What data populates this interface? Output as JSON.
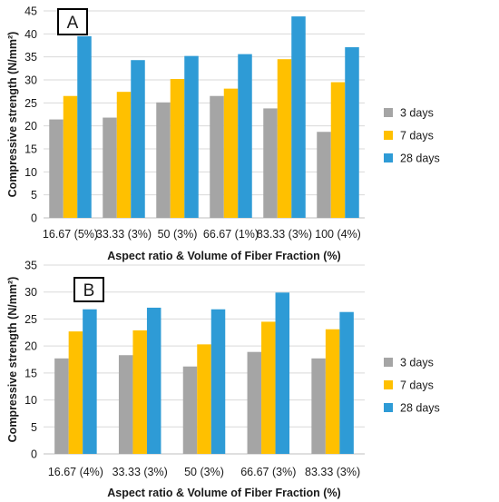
{
  "chart_data": [
    {
      "type": "bar",
      "panel_label": "A",
      "categories": [
        "16.67 (5%)",
        "33.33 (3%)",
        "50 (3%)",
        "66.67 (1%)",
        "83.33 (3%)",
        "100 (4%)"
      ],
      "series": [
        {
          "name": "3 days",
          "color": "#a5a5a5",
          "values": [
            21.4,
            21.8,
            25.1,
            26.5,
            23.8,
            18.7
          ]
        },
        {
          "name": "7 days",
          "color": "#ffc000",
          "values": [
            26.5,
            27.4,
            30.2,
            28.1,
            34.5,
            29.5
          ]
        },
        {
          "name": "28 days",
          "color": "#2e9bd6",
          "values": [
            39.5,
            34.3,
            35.2,
            35.6,
            43.8,
            37.1
          ]
        }
      ],
      "xlabel": "Aspect ratio & Volume of Fiber Fraction (%)",
      "ylabel": "Compressive strength (N/mm²)",
      "ylim": [
        0,
        45
      ],
      "yticks": [
        0,
        5,
        10,
        15,
        20,
        25,
        30,
        35,
        40,
        45
      ],
      "grid": true,
      "legend_position": "right"
    },
    {
      "type": "bar",
      "panel_label": "B",
      "categories": [
        "16.67 (4%)",
        "33.33 (3%)",
        "50 (3%)",
        "66.67 (3%)",
        "83.33 (3%)"
      ],
      "series": [
        {
          "name": "3 days",
          "color": "#a5a5a5",
          "values": [
            17.7,
            18.3,
            16.2,
            18.9,
            17.7
          ]
        },
        {
          "name": "7 days",
          "color": "#ffc000",
          "values": [
            22.7,
            22.9,
            20.3,
            24.5,
            23.1
          ]
        },
        {
          "name": "28 days",
          "color": "#2e9bd6",
          "values": [
            26.8,
            27.1,
            26.8,
            29.9,
            26.3
          ]
        }
      ],
      "xlabel": "Aspect ratio & Volume of Fiber Fraction (%)",
      "ylabel": "Compressive strength (N/mm²)",
      "ylim": [
        0,
        35
      ],
      "yticks": [
        0,
        5,
        10,
        15,
        20,
        25,
        30,
        35
      ],
      "grid": true,
      "legend_position": "right"
    }
  ]
}
